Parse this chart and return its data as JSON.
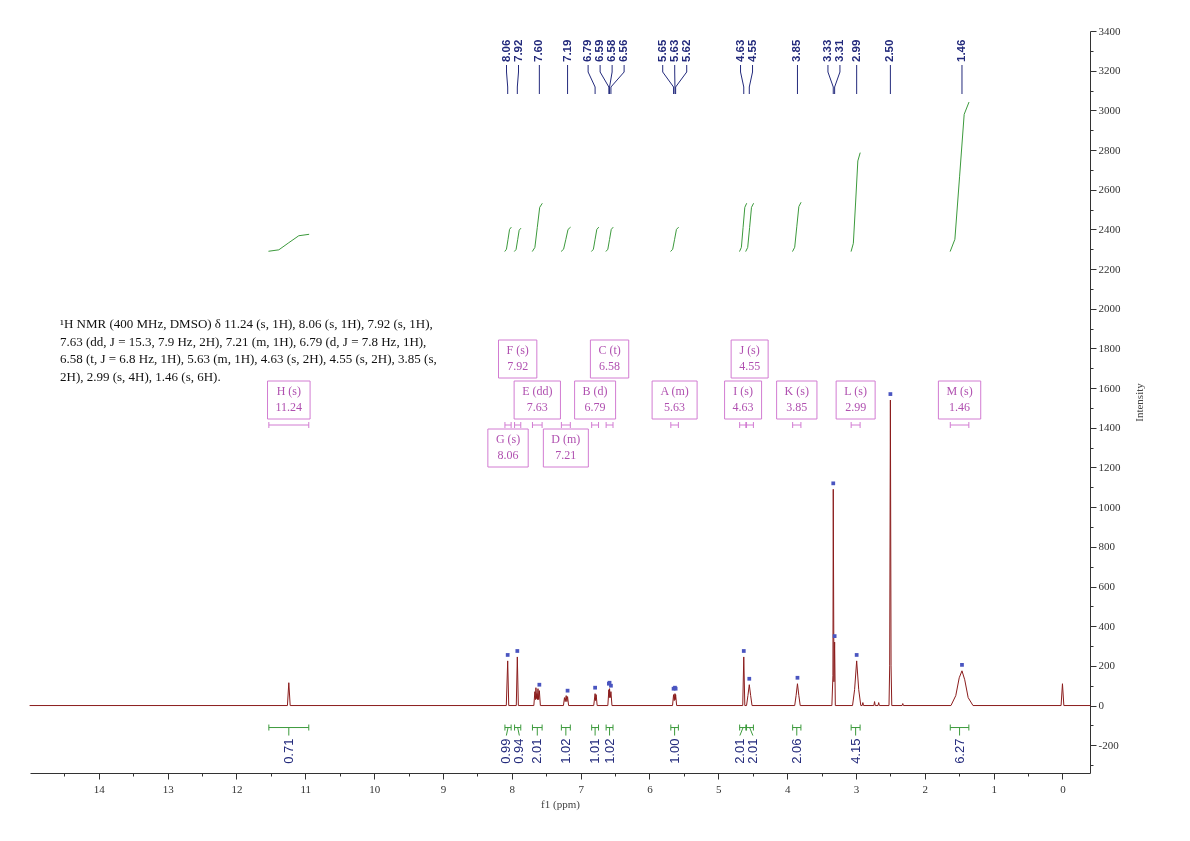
{
  "chart_data": {
    "type": "line",
    "xlabel": "f1 (ppm)",
    "ylabel": "Intensity",
    "xlim": [
      15,
      -0.4
    ],
    "ylim": [
      -340,
      3400
    ],
    "xticks": [
      {
        "value": 14.5,
        "label": null
      },
      14,
      {
        "value": 13.5,
        "label": null
      },
      13,
      {
        "value": 12.5,
        "label": null
      },
      12,
      {
        "value": 11.5,
        "label": null
      },
      11,
      {
        "value": 10.5,
        "label": null
      },
      10,
      {
        "value": 9.5,
        "label": null
      },
      9,
      {
        "value": 8.5,
        "label": null
      },
      8,
      {
        "value": 7.5,
        "label": null
      },
      7,
      {
        "value": 6.5,
        "label": null
      },
      6,
      {
        "value": 5.5,
        "label": null
      },
      5,
      {
        "value": 4.5,
        "label": null
      },
      4,
      {
        "value": 3.5,
        "label": null
      },
      3,
      {
        "value": 2.5,
        "label": null
      },
      2,
      {
        "value": 1.5,
        "label": null
      },
      1,
      {
        "value": 0.5,
        "label": null
      },
      0
    ],
    "yticks": [
      {
        "value": -300,
        "label": null
      },
      -200,
      {
        "value": -100,
        "label": null
      },
      0,
      {
        "value": 100,
        "label": null
      },
      200,
      {
        "value": 300,
        "label": null
      },
      400,
      {
        "value": 500,
        "label": null
      },
      600,
      {
        "value": 700,
        "label": null
      },
      800,
      {
        "value": 900,
        "label": null
      },
      1000,
      {
        "value": 1100,
        "label": null
      },
      1200,
      {
        "value": 1300,
        "label": null
      },
      1400,
      {
        "value": 1500,
        "label": null
      },
      1600,
      {
        "value": 1700,
        "label": null
      },
      1800,
      {
        "value": 1900,
        "label": null
      },
      2000,
      {
        "value": 2100,
        "label": null
      },
      2200,
      {
        "value": 2300,
        "label": null
      },
      2400,
      {
        "value": 2500,
        "label": null
      },
      2600,
      {
        "value": 2700,
        "label": null
      },
      2800,
      {
        "value": 2900,
        "label": null
      },
      3000,
      {
        "value": 3100,
        "label": null
      },
      3200,
      {
        "value": 3300,
        "label": null
      },
      3400
    ],
    "series": [
      {
        "color": "#8b1c1c",
        "x": [
          15,
          11.26,
          11.24,
          11.22,
          8.08,
          8.06,
          8.045,
          7.935,
          7.92,
          7.905,
          7.68,
          7.665,
          7.655,
          7.65,
          7.64,
          7.635,
          7.628,
          7.62,
          7.61,
          7.6,
          7.585,
          7.25,
          7.235,
          7.225,
          7.21,
          7.2,
          7.19,
          7.175,
          6.81,
          6.79,
          6.783,
          6.775,
          6.76,
          6.605,
          6.59,
          6.585,
          6.58,
          6.57,
          6.56,
          6.545,
          5.665,
          5.65,
          5.64,
          5.63,
          5.625,
          5.62,
          5.605,
          4.645,
          4.63,
          4.615,
          4.59,
          4.57,
          4.55,
          4.53,
          4.51,
          3.89,
          3.87,
          3.85,
          3.83,
          3.81,
          3.35,
          3.335,
          3.33,
          3.32,
          3.31,
          3.3,
          3.05,
          3.02,
          2.99,
          2.96,
          2.93,
          2.91,
          2.9,
          2.89,
          2.74,
          2.73,
          2.72,
          2.68,
          2.67,
          2.66,
          2.52,
          2.51,
          2.5,
          2.49,
          2.48,
          2.33,
          2.32,
          2.31,
          1.62,
          1.55,
          1.5,
          1.46,
          1.42,
          1.37,
          1.3,
          0.02,
          0,
          -0.02,
          -0.4
        ],
        "values": [
          0,
          0,
          115,
          0,
          0,
          225,
          0,
          0,
          245,
          0,
          0,
          70,
          30,
          90,
          35,
          60,
          30,
          85,
          30,
          75,
          0,
          0,
          40,
          20,
          50,
          20,
          45,
          0,
          0,
          60,
          25,
          55,
          0,
          0,
          80,
          40,
          85,
          40,
          70,
          0,
          0,
          55,
          25,
          60,
          30,
          55,
          0,
          0,
          245,
          0,
          0,
          50,
          105,
          50,
          0,
          0,
          50,
          110,
          50,
          0,
          0,
          150,
          1090,
          120,
          320,
          0,
          0,
          80,
          225,
          80,
          0,
          0,
          15,
          0,
          0,
          20,
          0,
          0,
          15,
          0,
          0,
          200,
          1540,
          200,
          0,
          0,
          10,
          0,
          0,
          50,
          140,
          175,
          130,
          40,
          0,
          0,
          110,
          0,
          0
        ]
      },
      {
        "color": "#3c9a3c",
        "x": [
          5.69,
          5.663,
          5.635,
          5.608,
          5.58
        ],
        "values": [
          2290,
          2300,
          2350,
          2400,
          2410
        ]
      },
      {
        "color": "#3c9a3c",
        "x": [
          6.84,
          6.815,
          6.79,
          6.765,
          6.74
        ],
        "values": [
          2290,
          2300,
          2350,
          2400,
          2410
        ]
      },
      {
        "color": "#3c9a3c",
        "x": [
          6.63,
          6.605,
          6.58,
          6.555,
          6.53
        ],
        "values": [
          2290,
          2300,
          2350,
          2400,
          2410
        ]
      },
      {
        "color": "#3c9a3c",
        "x": [
          7.28,
          7.248,
          7.215,
          7.183,
          7.15
        ],
        "values": [
          2290,
          2300,
          2350,
          2400,
          2410
        ]
      },
      {
        "color": "#3c9a3c",
        "x": [
          7.7,
          7.665,
          7.63,
          7.595,
          7.56
        ],
        "values": [
          2290,
          2309,
          2410,
          2511,
          2530
        ]
      },
      {
        "color": "#3c9a3c",
        "x": [
          7.96,
          7.938,
          7.915,
          7.893,
          7.87
        ],
        "values": [
          2290,
          2299,
          2348,
          2396,
          2405
        ]
      },
      {
        "color": "#3c9a3c",
        "x": [
          8.1,
          8.078,
          8.055,
          8.033,
          8.01
        ],
        "values": [
          2290,
          2300,
          2350,
          2400,
          2410
        ]
      },
      {
        "color": "#3c9a3c",
        "x": [
          11.53,
          11.385,
          11.24,
          11.095,
          10.95
        ],
        "values": [
          2290,
          2297,
          2333,
          2368,
          2375
        ]
      },
      {
        "color": "#3c9a3c",
        "x": [
          4.69,
          4.665,
          4.64,
          4.615,
          4.59
        ],
        "values": [
          2290,
          2309,
          2410,
          2511,
          2530
        ]
      },
      {
        "color": "#3c9a3c",
        "x": [
          4.6,
          4.573,
          4.545,
          4.518,
          4.49
        ],
        "values": [
          2290,
          2309,
          2410,
          2511,
          2530
        ]
      },
      {
        "color": "#3c9a3c",
        "x": [
          3.92,
          3.89,
          3.86,
          3.83,
          3.8
        ],
        "values": [
          2290,
          2310,
          2413,
          2515,
          2535
        ]
      },
      {
        "color": "#3c9a3c",
        "x": [
          3.07,
          3.038,
          3.005,
          2.973,
          2.94
        ],
        "values": [
          2290,
          2330,
          2538,
          2745,
          2785
        ]
      },
      {
        "color": "#3c9a3c",
        "x": [
          1.63,
          1.563,
          1.495,
          1.428,
          1.36
        ],
        "values": [
          2290,
          2350,
          2665,
          2980,
          3040
        ]
      },
      {
        "type": "scatter",
        "color": "#4a55c0",
        "marker": "square",
        "x": [
          8.06,
          7.92,
          7.6,
          7.19,
          6.79,
          6.59,
          6.58,
          6.56,
          5.65,
          5.63,
          5.62,
          4.63,
          4.55,
          3.85,
          3.33,
          3.31,
          2.99,
          2.5,
          1.46
        ],
        "values": [
          255,
          275,
          105,
          75,
          90,
          110,
          115,
          100,
          85,
          90,
          85,
          275,
          135,
          140,
          1120,
          350,
          255,
          1570,
          205
        ]
      }
    ],
    "annotations": [
      "¹H NMR (400 MHz, DMSO) δ 11.24 (s, 1H), 8.06 (s, 1H), 7.92 (s, 1H), 7.63 (dd, J = 15.3, 7.9 Hz, 2H), 7.21 (m, 1H), 6.79 (d, J = 7.8 Hz, 1H), 6.58 (t, J = 6.8 Hz, 1H), 5.63 (m, 1H), 4.63 (s, 2H), 4.55 (s, 2H), 3.85 (s, 2H), 2.99 (s, 4H), 1.46 (s, 6H).",
      "8.06",
      "7.92",
      "7.60",
      "7.19",
      "6.79",
      "6.59",
      "6.58",
      "6.56",
      "5.65",
      "5.63",
      "5.62",
      "4.63",
      "4.55",
      "3.85",
      "3.33",
      "3.31",
      "2.99",
      "2.50",
      "1.46",
      "1.00",
      "1.01",
      "1.02",
      "1.02",
      "2.01",
      "0.94",
      "0.99",
      "0.71",
      "2.01",
      "2.01",
      "2.06",
      "4.15",
      "6.27",
      "A (m)\n5.63",
      "B (d)\n6.79",
      "C (t)\n6.58",
      "D (m)\n7.21",
      "E (dd)\n7.63",
      "F (s)\n7.92",
      "G (s)\n8.06",
      "H (s)\n11.24",
      "I (s)\n4.63",
      "J (s)\n4.55",
      "K (s)\n3.85",
      "L (s)\n2.99",
      "M (s)\n1.46"
    ]
  }
}
